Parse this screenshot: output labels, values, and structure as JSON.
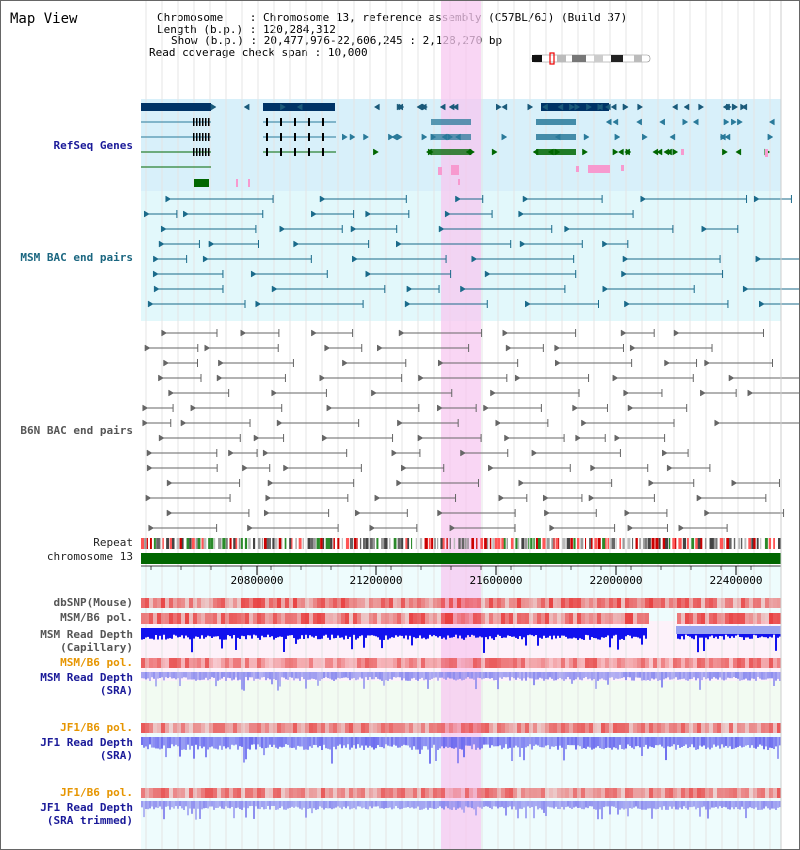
{
  "app": {
    "title": "Map View"
  },
  "header": {
    "chromosome_label": "Chromosome",
    "chromosome_value": "Chromosome 13, reference assembly (C57BL/6J) (Build 37)",
    "length_label": "Length (b.p.)",
    "length_value": "120,284,312",
    "show_label": "Show (b.p.)",
    "show_value": "20,477,976-22,606,245 : 2,128,270 bp",
    "coverage_label": "Read coverage check span",
    "coverage_value": "10,000"
  },
  "tracks": {
    "refseq": "RefSeq Genes",
    "msm_bac": "MSM BAC end pairs",
    "b6n_bac": "B6N BAC end pairs",
    "repeat": "Repeat",
    "chromosome": "chromosome 13",
    "dbsnp": "dbSNP(Mouse)",
    "msm_b6_pol_1": "MSM/B6 pol.",
    "msm_read_depth_cap_1": "MSM Read Depth",
    "msm_read_depth_cap_2": "(Capillary)",
    "msm_b6_pol_2": "MSM/B6 pol.",
    "msm_read_depth_sra_1": "MSM Read Depth",
    "msm_read_depth_sra_2": "(SRA)",
    "jf1_b6_pol_1": "JF1/B6 pol.",
    "jf1_read_depth_sra_1": "JF1 Read Depth",
    "jf1_read_depth_sra_2": "(SRA)",
    "jf1_b6_pol_2": "JF1/B6 pol.",
    "jf1_read_depth_trim_1": "JF1 Read Depth",
    "jf1_read_depth_trim_2": "(SRA trimmed)"
  },
  "axis": {
    "ticks": [
      "20800000",
      "21200000",
      "21600000",
      "22000000",
      "22400000"
    ]
  },
  "colors": {
    "highlight": "#f7c8f0",
    "refseq_bg": "#d8f0fa",
    "msm_bac_bg": "#e2f8fb",
    "chromosome_bar": "#006600",
    "gene_dark": "#003366",
    "gene_green": "#006600",
    "depth_blue": "#1111ee",
    "depth_lavender": "#7777ee"
  }
}
